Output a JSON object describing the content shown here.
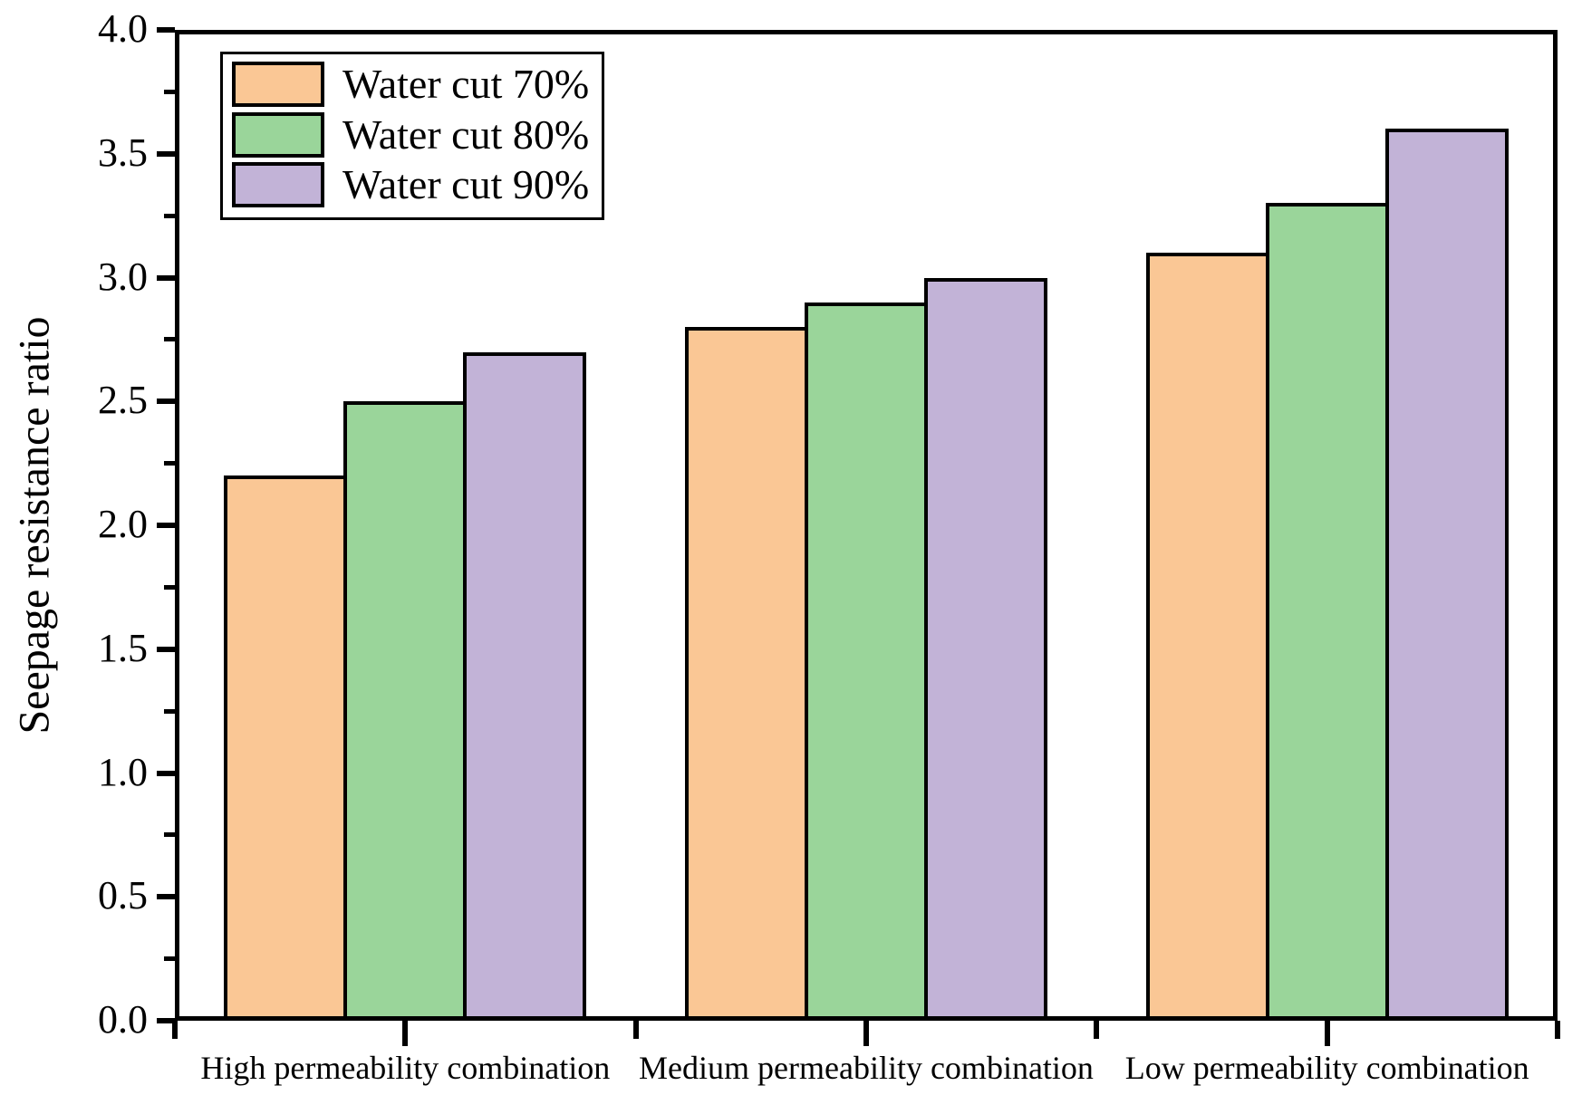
{
  "chart_data": {
    "type": "bar",
    "title": "",
    "xlabel": "",
    "ylabel": "Seepage resistance ratio",
    "categories": [
      "High permeability combination",
      "Medium permeability combination",
      "Low permeability combination"
    ],
    "series": [
      {
        "name": "Water cut 70%",
        "color": "#FAC795",
        "values": [
          2.2,
          2.8,
          3.1
        ]
      },
      {
        "name": "Water cut 80%",
        "color": "#9AD59A",
        "values": [
          2.5,
          2.9,
          3.3
        ]
      },
      {
        "name": "Water cut 90%",
        "color": "#C2B3D7",
        "values": [
          2.7,
          3.0,
          3.6
        ]
      }
    ],
    "ylim": [
      0,
      4
    ],
    "y_major_tick_step": 0.5,
    "y_minor_tick_step": 0.25,
    "y_tick_labels": [
      "0.0",
      "0.5",
      "1.0",
      "1.5",
      "2.0",
      "2.5",
      "3.0",
      "3.5",
      "4.0"
    ],
    "legend_position": "top-left",
    "grid": false,
    "bar_edge_color": "#000000",
    "axis_color": "#000000",
    "text_color": "#000000",
    "background_color": "#ffffff"
  }
}
